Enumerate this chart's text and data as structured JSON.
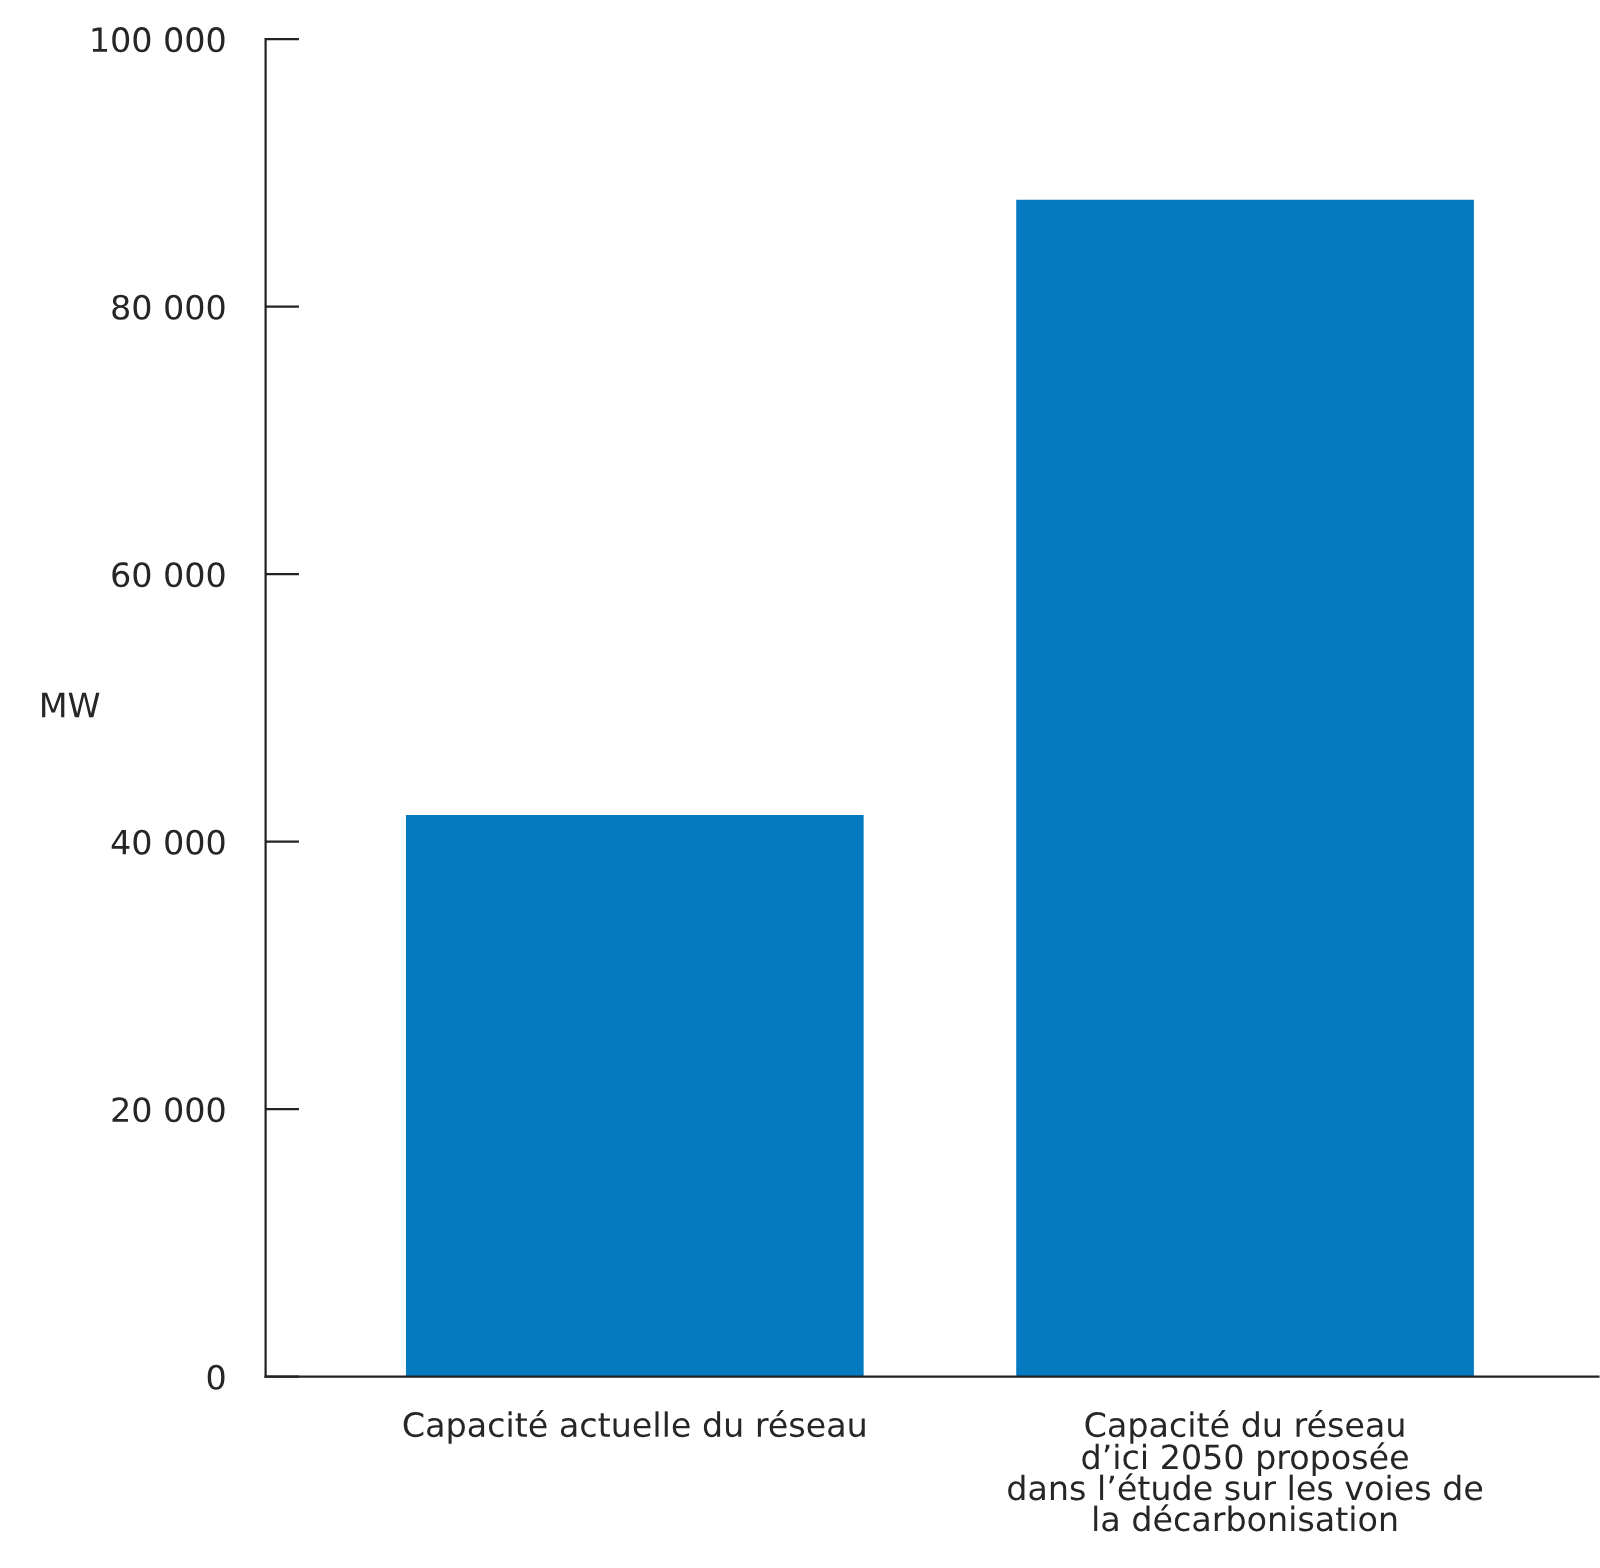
{
  "chart_data": {
    "type": "bar",
    "ylabel": "MW",
    "categories": [
      "Capacité actuelle du réseau",
      "Capacité du réseau\nd’ici 2050 proposée\ndans l’étude sur les voies de\nla décarbonisation"
    ],
    "values": [
      42000,
      88000
    ],
    "color": "#057ac0",
    "ylim": [
      0,
      100000
    ],
    "yticks": [
      {
        "value": 0,
        "label": "0"
      },
      {
        "value": 20000,
        "label": "20 000"
      },
      {
        "value": 40000,
        "label": "40 000"
      },
      {
        "value": 60000,
        "label": "60 000"
      },
      {
        "value": 80000,
        "label": "80 000"
      },
      {
        "value": 100000,
        "label": "100 000"
      }
    ],
    "grid": false,
    "legend": false
  }
}
